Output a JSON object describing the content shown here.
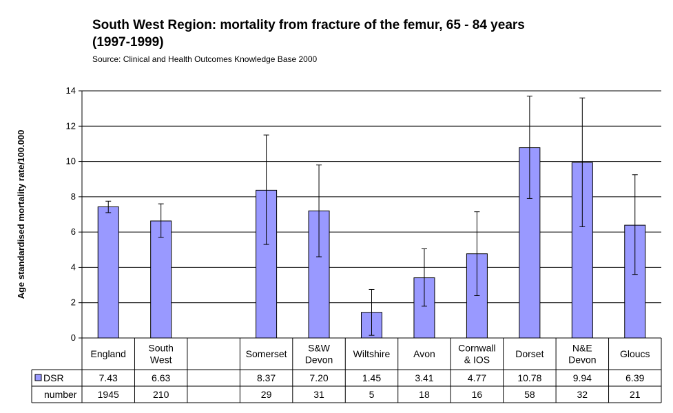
{
  "header": {
    "title_line1": "South West Region:  mortality from fracture of the femur, 65 - 84 years",
    "title_line2": "(1997-1999)",
    "source": "Source: Clinical and Health Outcomes Knowledge Base 2000"
  },
  "chart_data": {
    "type": "bar",
    "title": "South West Region:  mortality from fracture of the femur, 65 - 84 years (1997-1999)",
    "ylabel": "Age standardised mortality rate/100.000",
    "ylim": [
      0,
      14
    ],
    "yticks": [
      "0",
      "2",
      "4",
      "6",
      "8",
      "10",
      "12",
      "14"
    ],
    "grid": true,
    "bar_color": "#9999ff",
    "categories": [
      {
        "lines": [
          "England"
        ],
        "value": 7.43,
        "value_label": "7.43",
        "number": "1945",
        "err_low": 7.1,
        "err_high": 7.75
      },
      {
        "lines": [
          "South",
          "West"
        ],
        "value": 6.63,
        "value_label": "6.63",
        "number": "210",
        "err_low": 5.7,
        "err_high": 7.6
      },
      {
        "lines": [],
        "value": null,
        "value_label": "",
        "number": "",
        "err_low": null,
        "err_high": null
      },
      {
        "lines": [
          "Somerset"
        ],
        "value": 8.37,
        "value_label": "8.37",
        "number": "29",
        "err_low": 5.3,
        "err_high": 11.5
      },
      {
        "lines": [
          "S&W",
          "Devon"
        ],
        "value": 7.2,
        "value_label": "7.20",
        "number": "31",
        "err_low": 4.6,
        "err_high": 9.8
      },
      {
        "lines": [
          "Wiltshire"
        ],
        "value": 1.45,
        "value_label": "1.45",
        "number": "5",
        "err_low": 0.15,
        "err_high": 2.75
      },
      {
        "lines": [
          "Avon"
        ],
        "value": 3.41,
        "value_label": "3.41",
        "number": "18",
        "err_low": 1.8,
        "err_high": 5.05
      },
      {
        "lines": [
          "Cornwall",
          "& IOS"
        ],
        "value": 4.77,
        "value_label": "4.77",
        "number": "16",
        "err_low": 2.4,
        "err_high": 7.15
      },
      {
        "lines": [
          "Dorset"
        ],
        "value": 10.78,
        "value_label": "10.78",
        "number": "58",
        "err_low": 7.9,
        "err_high": 13.7
      },
      {
        "lines": [
          "N&E",
          "Devon"
        ],
        "value": 9.94,
        "value_label": "9.94",
        "number": "32",
        "err_low": 6.3,
        "err_high": 13.6
      },
      {
        "lines": [
          "Gloucs"
        ],
        "value": 6.39,
        "value_label": "6.39",
        "number": "21",
        "err_low": 3.6,
        "err_high": 9.25
      }
    ],
    "table_rows": [
      {
        "label": "DSR",
        "key": "value_label",
        "legend": true
      },
      {
        "label": "number",
        "key": "number",
        "legend": false
      }
    ]
  }
}
